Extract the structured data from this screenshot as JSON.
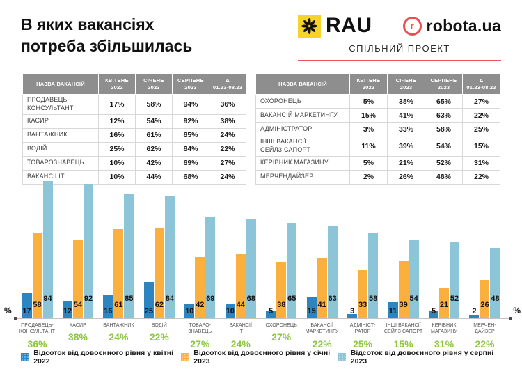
{
  "header": {
    "title_line1": "В яких вакансіях",
    "title_line2": "потреба збільшилась",
    "rau_label": "RAU",
    "robota_letter": "r",
    "robota_label": "robota.ua",
    "subtitle": "СПІЛЬНИЙ ПРОЕКТ",
    "rau_square_color": "#F6D32B",
    "robota_red": "#EF4B50",
    "underline_red": "#F0555A"
  },
  "tables": {
    "columns": [
      "НАЗВА ВАКАНСІЙ",
      "КВІТЕНЬ\n2022",
      "СІЧЕНЬ\n2023",
      "СЕРПЕНЬ\n2023",
      "Δ\n01.23-08.23"
    ],
    "left": [
      {
        "name": "ПРОДАВЕЦЬ-\nКОНСУЛЬТАНТ",
        "values": [
          "17%",
          "58%",
          "94%",
          "36%"
        ]
      },
      {
        "name": "КАСИР",
        "values": [
          "12%",
          "54%",
          "92%",
          "38%"
        ]
      },
      {
        "name": "ВАНТАЖНИК",
        "values": [
          "16%",
          "61%",
          "85%",
          "24%"
        ]
      },
      {
        "name": "ВОДІЙ",
        "values": [
          "25%",
          "62%",
          "84%",
          "22%"
        ]
      },
      {
        "name": "ТОВАРОЗНАВЕЦЬ",
        "values": [
          "10%",
          "42%",
          "69%",
          "27%"
        ]
      },
      {
        "name": "ВАКАНСІЇ ІТ",
        "values": [
          "10%",
          "44%",
          "68%",
          "24%"
        ]
      }
    ],
    "right": [
      {
        "name": "ОХОРОНЕЦЬ",
        "values": [
          "5%",
          "38%",
          "65%",
          "27%"
        ]
      },
      {
        "name": "ВАКАНСІЙ МАРКЕТИНГУ",
        "values": [
          "15%",
          "41%",
          "63%",
          "22%"
        ]
      },
      {
        "name": "АДМІНІСТРАТОР",
        "values": [
          "3%",
          "33%",
          "58%",
          "25%"
        ]
      },
      {
        "name": "ІНШІ ВАКАНСІЇ\nСЕЙЛЗ САПОРТ",
        "values": [
          "11%",
          "39%",
          "54%",
          "15%"
        ]
      },
      {
        "name": "КЕРІВНИК МАГАЗИНУ",
        "values": [
          "5%",
          "21%",
          "52%",
          "31%"
        ]
      },
      {
        "name": "МЕРЧЕНДАЙЗЕР",
        "values": [
          "2%",
          "26%",
          "48%",
          "22%"
        ]
      }
    ]
  },
  "chart_data": {
    "type": "bar",
    "categories": [
      "ПРОДАВЕЦЬ-\nКОНСУЛЬТАНТ",
      "КАСИР",
      "ВАНТАЖНИК",
      "ВОДІЙ",
      "ТОВАРО-\nЗНАВЕЦЬ",
      "ВАКАНСІЇ\nІТ",
      "ОХОРОНЕЦЬ",
      "ВАКАНСІЇ\nМАРКЕТИНГУ",
      "АДМІНІСТ-\nРАТОР",
      "ІНШІ ВАКАНСІЇ\nСЕЙЛЗ САПОРТ",
      "КЕРІВНИК\nМАГАЗИНУ",
      "МЕРЧЕН-\nДАЙЗЕР"
    ],
    "series": [
      {
        "name": "Відсоток від довоєнного рівня у квітні 2022",
        "color": "#2C85C1",
        "values": [
          17,
          12,
          16,
          25,
          10,
          10,
          5,
          15,
          3,
          11,
          5,
          2
        ]
      },
      {
        "name": "Відсоток від довоєнного рівня у січні 2023",
        "color": "#FBAF3C",
        "values": [
          58,
          54,
          61,
          62,
          42,
          44,
          38,
          41,
          33,
          39,
          21,
          26
        ]
      },
      {
        "name": "Відсоток від довоєнного рівня у серпні 2023",
        "color": "#8DC5D8",
        "values": [
          94,
          92,
          85,
          84,
          69,
          68,
          65,
          63,
          58,
          54,
          52,
          48
        ]
      }
    ],
    "deltas": [
      "36%",
      "38%",
      "24%",
      "22%",
      "27%",
      "24%",
      "27%",
      "22%",
      "25%",
      "15%",
      "31%",
      "22%"
    ],
    "axis_label": "%",
    "ylim": [
      0,
      100
    ],
    "grid": false,
    "legend_position": "bottom",
    "delta_color": "#8DC63F"
  }
}
